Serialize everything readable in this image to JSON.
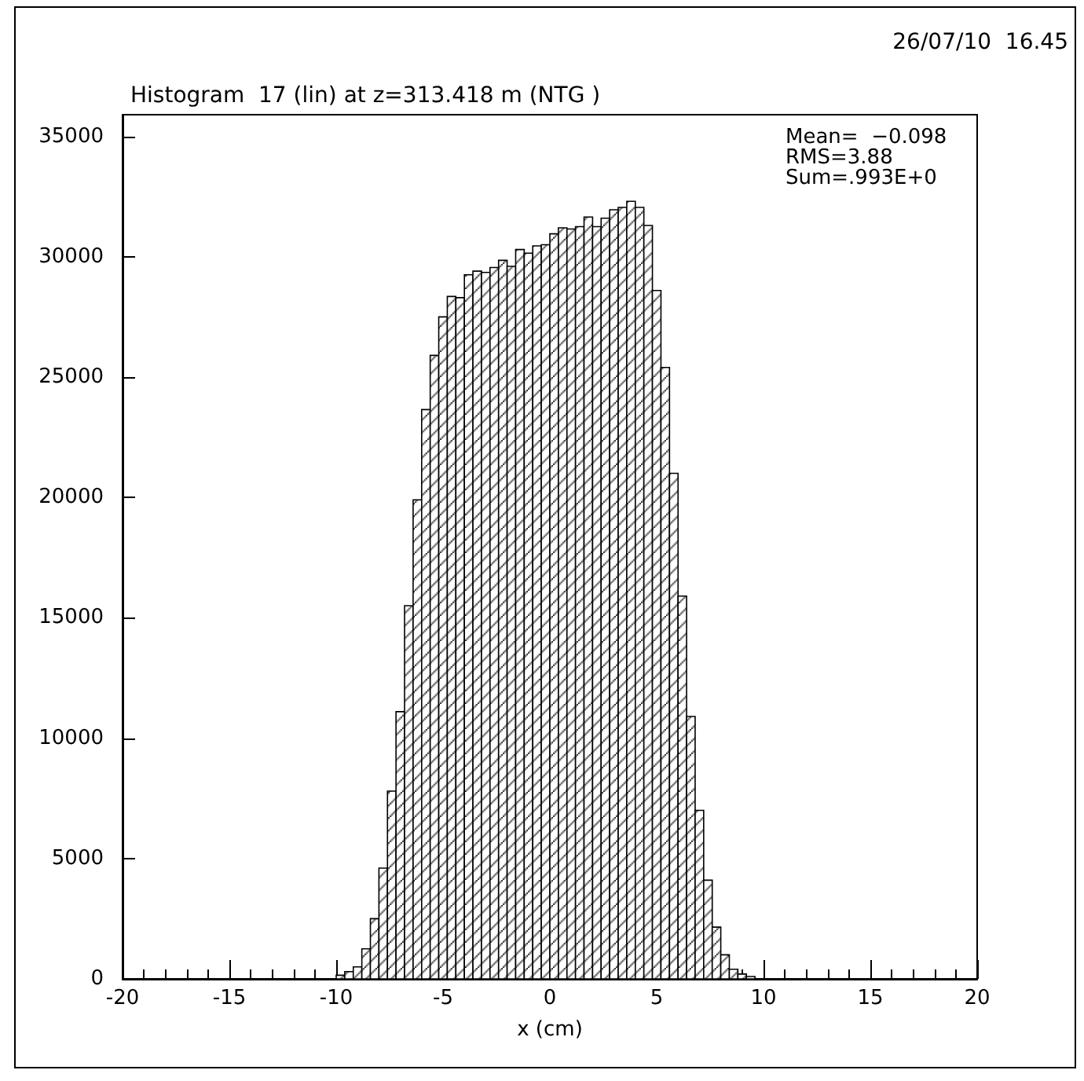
{
  "chart_data": {
    "type": "histogram",
    "title": "Histogram  17 (lin) at z=313.418 m (NTG )",
    "xlabel": "x (cm)",
    "annotations": [
      "26/07/10  16.45",
      "Mean=  −0.098",
      "RMS=3.88",
      "Sum=.993E+0"
    ],
    "color": "#000000",
    "bins": [
      -10.8,
      -10.4,
      -10.0,
      -9.6,
      -9.2,
      -8.8,
      -8.4,
      -8.0,
      -7.6,
      -7.2,
      -6.8,
      -6.4,
      -6.0,
      -5.6,
      -5.2,
      -4.8,
      -4.4,
      -4.0,
      -3.6,
      -3.2,
      -2.8,
      -2.4,
      -2.0,
      -1.6,
      -1.2,
      -0.8,
      -0.4,
      0.0,
      0.4,
      0.8,
      1.2,
      1.6,
      2.0,
      2.4,
      2.8,
      3.2,
      3.6,
      4.0,
      4.4,
      4.8,
      5.2,
      5.6,
      6.0,
      6.4,
      6.8,
      7.2,
      7.6,
      8.0,
      8.4,
      8.8,
      9.2,
      9.6,
      10.0,
      10.4,
      10.8,
      11.2
    ],
    "values": [
      null,
      null,
      150,
      300,
      500,
      1250,
      2500,
      4600,
      7800,
      11100,
      15500,
      19900,
      23650,
      25900,
      27500,
      28350,
      28300,
      29250,
      29400,
      29350,
      29550,
      29850,
      29600,
      30300,
      30150,
      30450,
      30500,
      30950,
      31200,
      31150,
      31250,
      31650,
      31250,
      31600,
      31950,
      32050,
      32300,
      32050,
      31300,
      28600,
      25400,
      21000,
      15900,
      10900,
      7000,
      4100,
      2150,
      1000,
      400,
      200,
      100,
      null,
      null,
      null,
      null
    ],
    "xlim": [
      -20,
      20
    ],
    "ylim": [
      0,
      35900
    ],
    "xticks": [
      -20,
      -15,
      -10,
      -5,
      0,
      5,
      10,
      15,
      20
    ],
    "yticks": [
      0,
      5000,
      10000,
      15000,
      20000,
      25000,
      30000,
      35000
    ]
  }
}
